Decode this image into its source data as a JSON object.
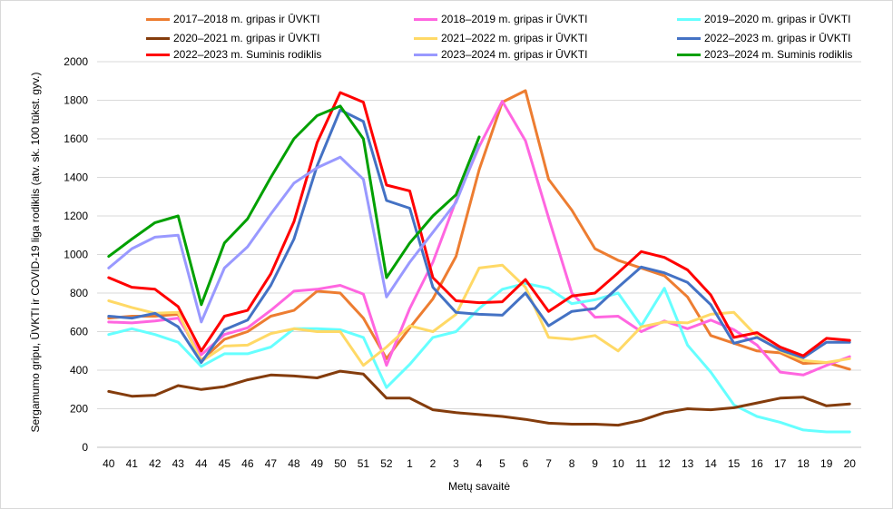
{
  "chart_data": {
    "type": "line",
    "xlabel": "Metų savaitė",
    "ylabel": "Sergamumo gripu, ŪVKTI ir COVID-19 liga rodiklis (atv. sk. 100 tūkst. gyv.)",
    "ylim": [
      0,
      2000
    ],
    "yticks": [
      "0",
      "200",
      "400",
      "600",
      "800",
      "1000",
      "1200",
      "1400",
      "1600",
      "1800",
      "2000"
    ],
    "categories": [
      "40",
      "41",
      "42",
      "43",
      "44",
      "45",
      "46",
      "47",
      "48",
      "49",
      "50",
      "51",
      "52",
      "1",
      "2",
      "3",
      "4",
      "5",
      "6",
      "7",
      "8",
      "9",
      "10",
      "11",
      "12",
      "13",
      "14",
      "15",
      "16",
      "17",
      "18",
      "19",
      "20"
    ],
    "grid": "horizontal",
    "legend_position": "top",
    "series": [
      {
        "name": "2017–2018 m. gripas ir ŪVKTI",
        "color": "#ED7D31",
        "values": [
          670,
          680,
          680,
          690,
          450,
          560,
          600,
          680,
          710,
          810,
          800,
          670,
          460,
          620,
          770,
          990,
          1440,
          1790,
          1850,
          1390,
          1230,
          1030,
          970,
          930,
          890,
          780,
          580,
          540,
          500,
          490,
          435,
          440,
          405
        ]
      },
      {
        "name": "2018–2019 m. gripas ir ŪVKTI",
        "color": "#FF66E0",
        "values": [
          650,
          645,
          655,
          670,
          480,
          585,
          620,
          710,
          810,
          820,
          840,
          795,
          425,
          720,
          960,
          1280,
          1560,
          1795,
          1590,
          1190,
          800,
          675,
          680,
          600,
          655,
          615,
          660,
          610,
          530,
          390,
          375,
          425,
          470
        ]
      },
      {
        "name": "2019–2020 m. gripas ir ŪVKTI",
        "color": "#66FFFF",
        "values": [
          585,
          615,
          585,
          545,
          420,
          485,
          485,
          520,
          615,
          615,
          610,
          570,
          310,
          430,
          570,
          600,
          720,
          820,
          850,
          825,
          745,
          765,
          800,
          630,
          825,
          530,
          390,
          220,
          160,
          130,
          90,
          80,
          80
        ]
      },
      {
        "name": "2020–2021 m. gripas ir ŪVKTI",
        "color": "#843C0C",
        "values": [
          290,
          265,
          270,
          320,
          300,
          315,
          350,
          375,
          370,
          360,
          395,
          380,
          255,
          255,
          195,
          180,
          170,
          160,
          145,
          125,
          120,
          120,
          115,
          140,
          180,
          200,
          195,
          205,
          230,
          255,
          260,
          215,
          225
        ]
      },
      {
        "name": "2021–2022 m. gripas ir ŪVKTI",
        "color": "#FFD966",
        "values": [
          760,
          725,
          695,
          700,
          445,
          525,
          530,
          590,
          615,
          600,
          600,
          425,
          520,
          630,
          600,
          690,
          930,
          945,
          830,
          570,
          560,
          580,
          500,
          625,
          650,
          645,
          690,
          700,
          575,
          500,
          450,
          440,
          460
        ]
      },
      {
        "name": "2022–2023 m. gripas ir ŪVKTI",
        "color": "#4472C4",
        "values": [
          680,
          670,
          695,
          625,
          440,
          610,
          660,
          840,
          1080,
          1460,
          1750,
          1690,
          1280,
          1240,
          830,
          700,
          690,
          685,
          800,
          630,
          705,
          720,
          830,
          935,
          905,
          855,
          740,
          540,
          570,
          505,
          465,
          545,
          545
        ]
      },
      {
        "name": "2022–2023 m. Suminis rodiklis",
        "color": "#FF0000",
        "values": [
          880,
          830,
          820,
          730,
          500,
          680,
          710,
          900,
          1170,
          1580,
          1840,
          1790,
          1360,
          1330,
          880,
          760,
          750,
          755,
          870,
          705,
          785,
          800,
          905,
          1015,
          985,
          920,
          790,
          570,
          595,
          520,
          475,
          565,
          555
        ]
      },
      {
        "name": "2023–2024 m. gripas ir ŪVKTI",
        "color": "#9999FF",
        "values": [
          930,
          1030,
          1090,
          1100,
          650,
          930,
          1040,
          1210,
          1370,
          1450,
          1505,
          1390,
          780,
          960,
          1115,
          1270,
          1570,
          null,
          null,
          null,
          null,
          null,
          null,
          null,
          null,
          null,
          null,
          null,
          null,
          null,
          null,
          null,
          null
        ]
      },
      {
        "name": "2023–2024 m. Suminis rodiklis",
        "color": "#00A000",
        "values": [
          990,
          1080,
          1165,
          1200,
          740,
          1060,
          1185,
          1400,
          1600,
          1720,
          1770,
          1600,
          880,
          1060,
          1200,
          1310,
          1610,
          null,
          null,
          null,
          null,
          null,
          null,
          null,
          null,
          null,
          null,
          null,
          null,
          null,
          null,
          null,
          null
        ]
      }
    ]
  }
}
